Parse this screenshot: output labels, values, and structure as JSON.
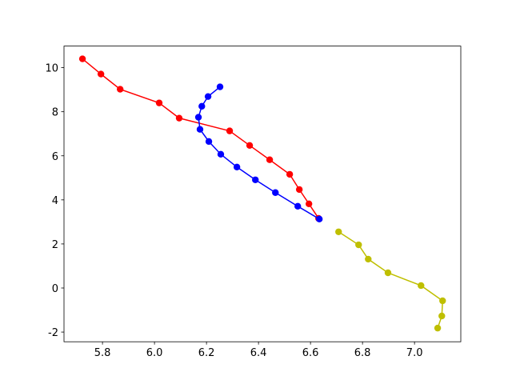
{
  "chart_data": {
    "type": "line",
    "series": [
      {
        "color": "#ff0000",
        "x": [
          5.723,
          5.794,
          5.868,
          6.018,
          6.095,
          6.289,
          6.366,
          6.443,
          6.52,
          6.557,
          6.594,
          6.631
        ],
        "values": [
          10.4,
          9.71,
          9.02,
          8.4,
          7.71,
          7.13,
          6.47,
          5.82,
          5.16,
          4.47,
          3.82,
          3.16
        ]
      },
      {
        "color": "#0000ff",
        "x": [
          6.252,
          6.206,
          6.182,
          6.169,
          6.175,
          6.209,
          6.255,
          6.317,
          6.388,
          6.465,
          6.551,
          6.634
        ],
        "values": [
          9.13,
          8.69,
          8.25,
          7.75,
          7.2,
          6.65,
          6.07,
          5.49,
          4.91,
          4.33,
          3.71,
          3.13
        ]
      },
      {
        "color": "#bfbf00",
        "x": [
          6.708,
          6.785,
          6.822,
          6.898,
          7.025,
          7.108,
          7.105,
          7.089
        ],
        "values": [
          2.55,
          1.96,
          1.31,
          0.69,
          0.11,
          -0.58,
          -1.27,
          -1.82
        ]
      }
    ],
    "xlim": [
      5.652,
      7.178
    ],
    "xticks": [
      5.8,
      {
        "value": 6,
        "label": "6.0"
      },
      6.2,
      6.4,
      6.6,
      6.8,
      {
        "value": 7,
        "label": "7.0"
      }
    ],
    "ylim": [
      -2.44,
      10.98
    ],
    "yticks": [
      -2,
      0,
      2,
      4,
      6,
      8,
      10
    ]
  }
}
